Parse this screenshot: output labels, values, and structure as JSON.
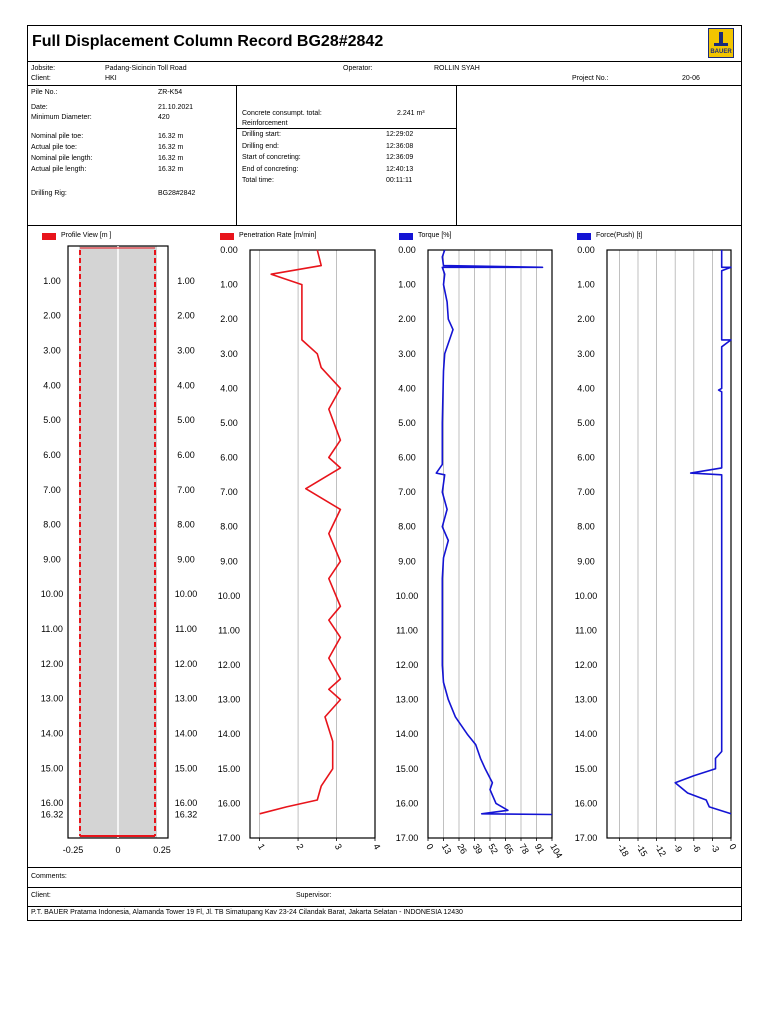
{
  "header": {
    "title": "Full Displacement Column Record BG28#2842",
    "logo_text": "BAUER"
  },
  "info1": {
    "jobsite_label": "Jobsite:",
    "jobsite": "Padang-Sicincin Toll Road",
    "client_label": "Client:",
    "client": "HKI",
    "operator_label": "Operator:",
    "operator": "ROLLIN SYAH",
    "project_label": "Project No.:",
    "project": "20-06"
  },
  "info2": {
    "pile_label": "Pile No.:",
    "pile": "ZR-K54",
    "date_label": "Date:",
    "date": "21.10.2021",
    "mindiam_label": "Minimum Diameter:",
    "mindiam": "420",
    "nominal_toe_label": "Nominal pile toe:",
    "nominal_toe": "16.32 m",
    "actual_toe_label": "Actual pile toe:",
    "actual_toe": "16.32 m",
    "nominal_len_label": "Nominal pile length:",
    "nominal_len": "16.32 m",
    "actual_len_label": "Actual pile length:",
    "actual_len": "16.32 m",
    "rig_label": "Drilling Rig:",
    "rig": "BG28#2842",
    "concrete_label": "Concrete consumpt. total:",
    "concrete": "2.241 m³",
    "reinforcement_label": "Reinforcement",
    "drill_start_label": "Drilling start:",
    "drill_start": "12:29:02",
    "drill_end_label": "Drilling end:",
    "drill_end": "12:36:08",
    "conc_start_label": "Start of concreting:",
    "conc_start": "12:36:09",
    "conc_end_label": "End of concreting:",
    "conc_end": "12:40:13",
    "total_label": "Total time:",
    "total": "00:11:11"
  },
  "legend": {
    "profile": "Profile View [m ]",
    "penetration": "Penetration Rate [m/min]",
    "torque": "Torque [%]",
    "force": "Force(Push) [t]",
    "red": "#e8141b",
    "blue": "#1414d4"
  },
  "profile_ticks": [
    "1.00",
    "2.00",
    "3.00",
    "4.00",
    "5.00",
    "6.00",
    "7.00",
    "8.00",
    "9.00",
    "10.00",
    "11.00",
    "12.00",
    "13.00",
    "14.00",
    "15.00",
    "16.00",
    "16.32"
  ],
  "profile_x_ticks": [
    "-0.25",
    "0",
    "0.25"
  ],
  "depth_ticks": [
    "0.00",
    "1.00",
    "2.00",
    "3.00",
    "4.00",
    "5.00",
    "6.00",
    "7.00",
    "8.00",
    "9.00",
    "10.00",
    "11.00",
    "12.00",
    "13.00",
    "14.00",
    "15.00",
    "16.00",
    "17.00"
  ],
  "chart_data": [
    {
      "type": "line",
      "title": "Penetration Rate [m/min]",
      "x_ticks": [
        "1",
        "2",
        "3",
        "4"
      ],
      "xlim": [
        0.75,
        4.0
      ],
      "ylim": [
        0,
        17
      ],
      "y_inverted": true,
      "points": [
        [
          2.5,
          0
        ],
        [
          2.6,
          0.45
        ],
        [
          1.3,
          0.7
        ],
        [
          2.1,
          1.0
        ],
        [
          2.1,
          2.6
        ],
        [
          2.5,
          3.0
        ],
        [
          2.6,
          3.4
        ],
        [
          3.1,
          4.0
        ],
        [
          2.8,
          4.6
        ],
        [
          3.1,
          5.5
        ],
        [
          2.8,
          6.0
        ],
        [
          3.1,
          6.3
        ],
        [
          2.2,
          6.9
        ],
        [
          3.1,
          7.5
        ],
        [
          2.8,
          8.2
        ],
        [
          3.1,
          9.0
        ],
        [
          2.8,
          9.5
        ],
        [
          3.1,
          10.3
        ],
        [
          2.8,
          10.7
        ],
        [
          3.1,
          11.2
        ],
        [
          2.8,
          11.8
        ],
        [
          3.1,
          12.4
        ],
        [
          2.8,
          12.7
        ],
        [
          3.1,
          13.0
        ],
        [
          2.7,
          13.5
        ],
        [
          2.9,
          14.2
        ],
        [
          2.9,
          15.0
        ],
        [
          2.6,
          15.5
        ],
        [
          2.5,
          15.9
        ],
        [
          1.7,
          16.1
        ],
        [
          1.0,
          16.3
        ]
      ]
    },
    {
      "type": "line",
      "title": "Torque [%]",
      "x_ticks": [
        "0",
        "13",
        "26",
        "39",
        "52",
        "65",
        "78",
        "91",
        "104"
      ],
      "xlim": [
        0,
        104
      ],
      "ylim": [
        0,
        17
      ],
      "y_inverted": true,
      "points": [
        [
          14,
          0
        ],
        [
          12,
          0.2
        ],
        [
          13,
          0.45
        ],
        [
          96,
          0.5
        ],
        [
          12,
          0.5
        ],
        [
          14,
          0.7
        ],
        [
          13,
          1.0
        ],
        [
          16,
          1.5
        ],
        [
          17,
          2.0
        ],
        [
          21,
          2.3
        ],
        [
          18,
          2.6
        ],
        [
          14,
          3.0
        ],
        [
          13,
          3.5
        ],
        [
          12,
          5.0
        ],
        [
          12,
          6.2
        ],
        [
          7,
          6.45
        ],
        [
          14,
          6.5
        ],
        [
          12,
          7.0
        ],
        [
          16,
          7.5
        ],
        [
          12,
          8.0
        ],
        [
          17,
          8.4
        ],
        [
          13,
          8.9
        ],
        [
          12,
          9.5
        ],
        [
          12,
          12.0
        ],
        [
          13,
          12.5
        ],
        [
          17,
          13.0
        ],
        [
          23,
          13.5
        ],
        [
          33,
          14.0
        ],
        [
          40,
          14.3
        ],
        [
          44,
          14.7
        ],
        [
          48,
          15.0
        ],
        [
          54,
          15.4
        ],
        [
          52,
          15.6
        ],
        [
          57,
          16.0
        ],
        [
          67,
          16.2
        ],
        [
          45,
          16.3
        ],
        [
          104,
          16.32
        ]
      ]
    },
    {
      "type": "line",
      "title": "Force(Push) [t]",
      "x_ticks": [
        "-18",
        "-15",
        "-12",
        "-9",
        "-6",
        "-3",
        "0"
      ],
      "xlim": [
        -20,
        0
      ],
      "ylim": [
        0,
        17
      ],
      "y_inverted": true,
      "points": [
        [
          -1.5,
          0
        ],
        [
          -1.5,
          0.5
        ],
        [
          0,
          0.5
        ],
        [
          -1.5,
          0.6
        ],
        [
          -1.5,
          2.6
        ],
        [
          0,
          2.6
        ],
        [
          -1.5,
          2.8
        ],
        [
          -1.5,
          4.0
        ],
        [
          -2,
          4.05
        ],
        [
          -1.5,
          4.1
        ],
        [
          -1.5,
          6.3
        ],
        [
          -6.5,
          6.45
        ],
        [
          -1.5,
          6.5
        ],
        [
          -1.5,
          14.5
        ],
        [
          -2.5,
          14.7
        ],
        [
          -2.5,
          15.0
        ],
        [
          -6,
          15.2
        ],
        [
          -9,
          15.4
        ],
        [
          -7,
          15.7
        ],
        [
          -4,
          15.9
        ],
        [
          -3.5,
          16.1
        ],
        [
          0,
          16.3
        ]
      ]
    }
  ],
  "footer": {
    "comments_label": "Comments:",
    "client_label": "Client:",
    "supervisor_label": "Supervisor:",
    "address": "P.T. BAUER Pratama Indonesia, Alamanda Tower 19 Fl, Jl. TB Simatupang Kav 23-24 Cilandak Barat, Jakarta Selatan - INDONESIA 12430"
  }
}
